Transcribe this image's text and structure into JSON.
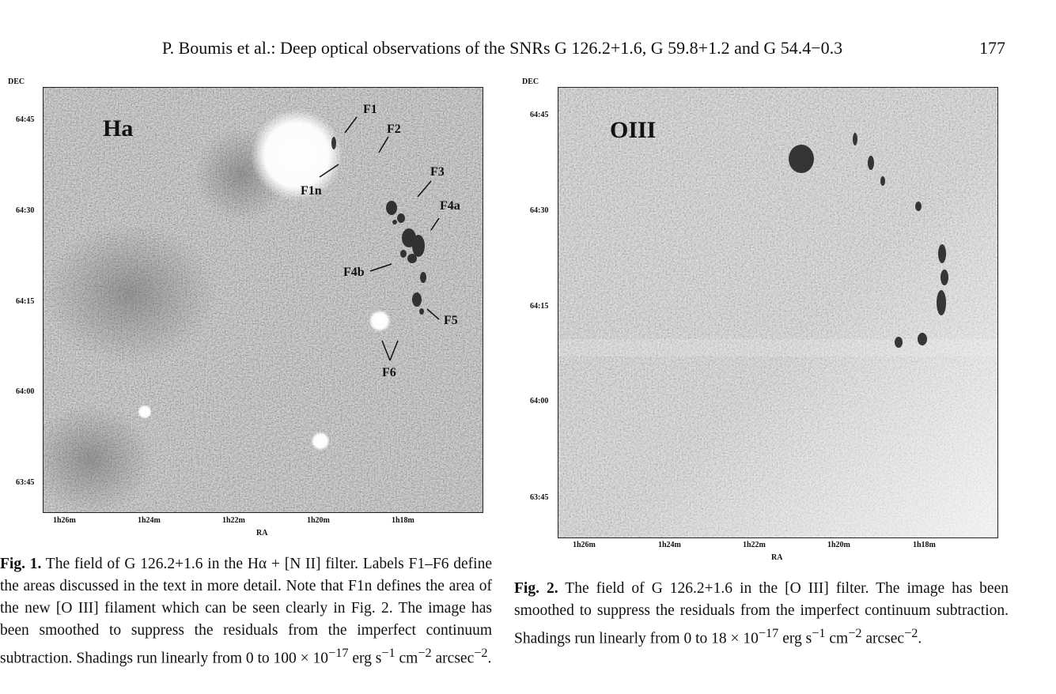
{
  "header": {
    "running_title": "P. Boumis et al.: Deep optical observations of the SNRs G 126.2+1.6, G 59.8+1.2 and G 54.4−0.3",
    "page_number": "177"
  },
  "figure1": {
    "dec_axis_title": "DEC",
    "ra_axis_title": "RA",
    "filter_label": "Ha",
    "dec_ticks": [
      "64:45",
      "64:30",
      "64:15",
      "64:00",
      "63:45"
    ],
    "ra_ticks": [
      "1h26m",
      "1h24m",
      "1h22m",
      "1h20m",
      "1h18m"
    ],
    "region_labels": [
      "F1",
      "F2",
      "F1n",
      "F3",
      "F4a",
      "F4b",
      "F5",
      "F6"
    ],
    "caption_label": "Fig. 1.",
    "caption_text": "The field of G 126.2+1.6 in the Hα + [N II] filter. Labels F1–F6 define the areas discussed in the text in more detail. Note that F1n defines the area of the new [O III] filament which can be seen clearly in Fig. 2. The image has been smoothed to suppress the residuals from the imperfect continuum subtraction. Shadings run linearly from 0 to 100 × 10",
    "caption_exp": "−17",
    "caption_units_a": " erg s",
    "caption_exp2": "−1",
    "caption_units_b": " cm",
    "caption_exp3": "−2",
    "caption_units_c": " arcsec",
    "caption_exp4": "−2",
    "caption_end": "."
  },
  "figure2": {
    "dec_axis_title": "DEC",
    "ra_axis_title": "RA",
    "filter_label": "OIII",
    "dec_ticks": [
      "64:45",
      "64:30",
      "64:15",
      "64:00",
      "63:45"
    ],
    "ra_ticks": [
      "1h26m",
      "1h24m",
      "1h22m",
      "1h20m",
      "1h18m"
    ],
    "caption_label": "Fig. 2.",
    "caption_text": " The field of G 126.2+1.6 in the [O III] filter. The image has been smoothed to suppress the residuals from the imperfect continuum subtraction. Shadings run linearly from 0 to 18 × 10",
    "caption_exp": "−17",
    "caption_units_a": " erg s",
    "caption_exp2": "−1",
    "caption_units_b": " cm",
    "caption_exp3": "−2",
    "caption_units_c": " arcsec",
    "caption_exp4": "−2",
    "caption_end": "."
  }
}
